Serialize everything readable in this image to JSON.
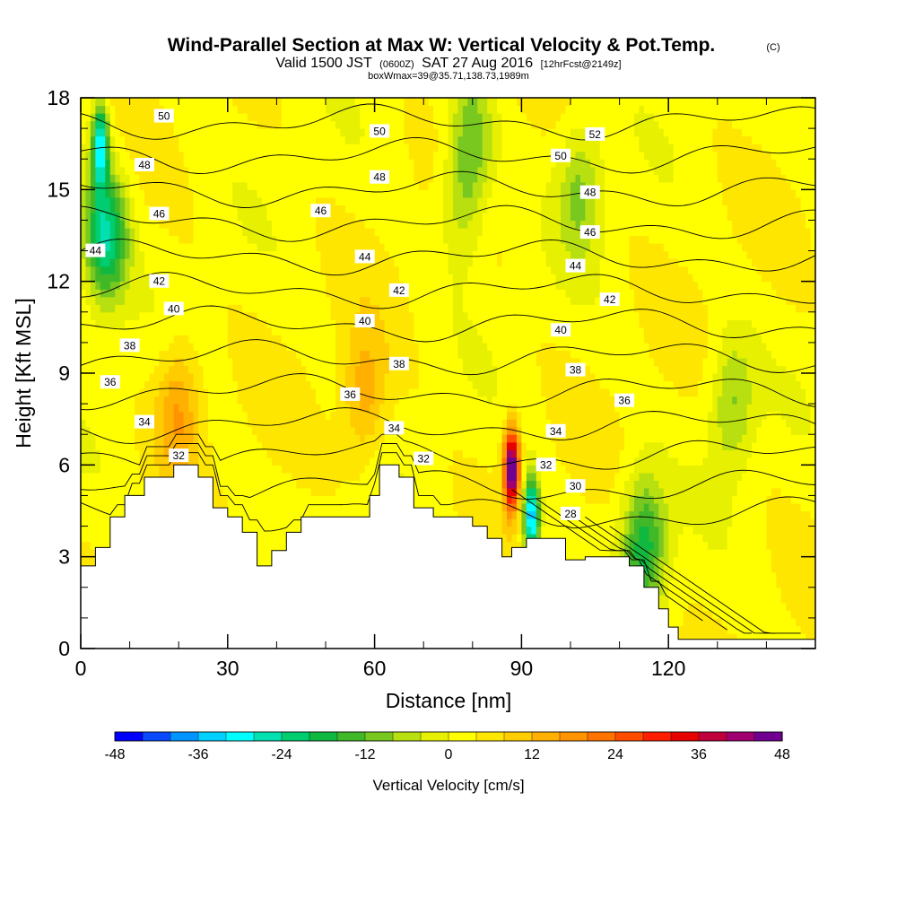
{
  "chart_data": {
    "type": "heatmap",
    "title": "Wind-Parallel Section at Max W: Vertical Velocity & Pot.Temp.",
    "title_mark": "(C)",
    "subtitle_parts": [
      "Valid 1500 JST",
      "(0600Z)",
      "SAT 27 Aug 2016",
      "[12hrFcst@2149z]"
    ],
    "subtitle2": "boxWmax=39@35.71,138.73,1989m",
    "xlabel": "Distance [nm]",
    "ylabel": "Height [Kft MSL]",
    "xlim": [
      0,
      150
    ],
    "ylim": [
      0,
      18
    ],
    "xticks": [
      0,
      30,
      60,
      90,
      120
    ],
    "yticks": [
      0,
      3,
      6,
      9,
      12,
      15,
      18
    ],
    "colorbar": {
      "label": "Vertical Velocity [cm/s]",
      "ticks": [
        -48,
        -36,
        -24,
        -12,
        0,
        12,
        24,
        36,
        48
      ],
      "colors": [
        "#0000ff",
        "#0a4aff",
        "#0094ff",
        "#00d0ff",
        "#00ffff",
        "#00e0b0",
        "#00cc70",
        "#10b840",
        "#40b828",
        "#78c820",
        "#b8e010",
        "#e6f000",
        "#ffff00",
        "#ffe600",
        "#ffcc00",
        "#ffb000",
        "#ff9400",
        "#ff7400",
        "#ff4c00",
        "#ff1e00",
        "#e60000",
        "#c0003c",
        "#a00070",
        "#700090"
      ]
    },
    "contours": {
      "name": "Pot.Temp.",
      "levels": [
        28,
        30,
        32,
        34,
        36,
        38,
        40,
        42,
        44,
        46,
        48,
        50,
        52
      ],
      "labels": [
        {
          "x": 17,
          "y": 17.4,
          "v": "50"
        },
        {
          "x": 61,
          "y": 16.9,
          "v": "50"
        },
        {
          "x": 98,
          "y": 16.1,
          "v": "50"
        },
        {
          "x": 105,
          "y": 16.8,
          "v": "52"
        },
        {
          "x": 13,
          "y": 15.8,
          "v": "48"
        },
        {
          "x": 61,
          "y": 15.4,
          "v": "48"
        },
        {
          "x": 104,
          "y": 14.9,
          "v": "48"
        },
        {
          "x": 16,
          "y": 14.2,
          "v": "46"
        },
        {
          "x": 49,
          "y": 14.3,
          "v": "46"
        },
        {
          "x": 104,
          "y": 13.6,
          "v": "46"
        },
        {
          "x": 3,
          "y": 13.0,
          "v": "44"
        },
        {
          "x": 58,
          "y": 12.8,
          "v": "44"
        },
        {
          "x": 101,
          "y": 12.5,
          "v": "44"
        },
        {
          "x": 16,
          "y": 12.0,
          "v": "42"
        },
        {
          "x": 65,
          "y": 11.7,
          "v": "42"
        },
        {
          "x": 108,
          "y": 11.4,
          "v": "42"
        },
        {
          "x": 19,
          "y": 11.1,
          "v": "40"
        },
        {
          "x": 58,
          "y": 10.7,
          "v": "40"
        },
        {
          "x": 98,
          "y": 10.4,
          "v": "40"
        },
        {
          "x": 10,
          "y": 9.9,
          "v": "38"
        },
        {
          "x": 65,
          "y": 9.3,
          "v": "38"
        },
        {
          "x": 101,
          "y": 9.1,
          "v": "38"
        },
        {
          "x": 6,
          "y": 8.7,
          "v": "36"
        },
        {
          "x": 55,
          "y": 8.3,
          "v": "36"
        },
        {
          "x": 111,
          "y": 8.1,
          "v": "36"
        },
        {
          "x": 13,
          "y": 7.4,
          "v": "34"
        },
        {
          "x": 64,
          "y": 7.2,
          "v": "34"
        },
        {
          "x": 97,
          "y": 7.1,
          "v": "34"
        },
        {
          "x": 20,
          "y": 6.3,
          "v": "32"
        },
        {
          "x": 70,
          "y": 6.2,
          "v": "32"
        },
        {
          "x": 95,
          "y": 6.0,
          "v": "32"
        },
        {
          "x": 101,
          "y": 5.3,
          "v": "30"
        },
        {
          "x": 100,
          "y": 4.4,
          "v": "28"
        }
      ]
    },
    "terrain_kft": [
      [
        0,
        2.7
      ],
      [
        3,
        3.3
      ],
      [
        6,
        4.3
      ],
      [
        9,
        5.0
      ],
      [
        13,
        5.6
      ],
      [
        19,
        6.0
      ],
      [
        24,
        5.6
      ],
      [
        27,
        4.6
      ],
      [
        30,
        4.3
      ],
      [
        33,
        3.8
      ],
      [
        36,
        2.7
      ],
      [
        39,
        3.2
      ],
      [
        42,
        3.8
      ],
      [
        45,
        4.3
      ],
      [
        50,
        4.3
      ],
      [
        55,
        4.3
      ],
      [
        59,
        5.0
      ],
      [
        61,
        6.0
      ],
      [
        65,
        5.6
      ],
      [
        68,
        4.6
      ],
      [
        72,
        4.3
      ],
      [
        77,
        4.3
      ],
      [
        80,
        4.0
      ],
      [
        83,
        3.6
      ],
      [
        86,
        3.0
      ],
      [
        88,
        3.3
      ],
      [
        91,
        3.6
      ],
      [
        96,
        3.6
      ],
      [
        99,
        2.9
      ],
      [
        103,
        3.0
      ],
      [
        108,
        3.0
      ],
      [
        112,
        2.7
      ],
      [
        115,
        2.0
      ],
      [
        118,
        1.3
      ],
      [
        120,
        0.7
      ],
      [
        122,
        0.3
      ],
      [
        124,
        0.3
      ],
      [
        130,
        0.3
      ],
      [
        140,
        0.3
      ],
      [
        150,
        0.3
      ]
    ],
    "w_features_cms": [
      {
        "x": 5,
        "y": 13.5,
        "v": -28
      },
      {
        "x": 4,
        "y": 16.5,
        "v": -34
      },
      {
        "x": 20,
        "y": 7.8,
        "v": 14
      },
      {
        "x": 58,
        "y": 8.3,
        "v": 12
      },
      {
        "x": 88,
        "y": 5.9,
        "v": 48
      },
      {
        "x": 92,
        "y": 4.3,
        "v": -40
      },
      {
        "x": 115,
        "y": 3.4,
        "v": -22
      },
      {
        "x": 80,
        "y": 16.8,
        "v": -12
      },
      {
        "x": 78,
        "y": 14.7,
        "v": -10
      },
      {
        "x": 102,
        "y": 15.0,
        "v": -12
      },
      {
        "x": 133,
        "y": 8.0,
        "v": -12
      }
    ]
  }
}
